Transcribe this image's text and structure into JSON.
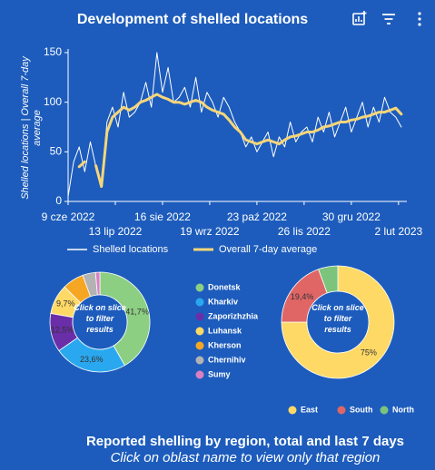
{
  "chart_data": [
    {
      "type": "line",
      "title": "Development of shelled locations",
      "y_label": "Shelled locations | Overall 7-day average",
      "x": [
        "2022-06-09",
        "2022-06-13",
        "2022-06-17",
        "2022-06-21",
        "2022-06-25",
        "2022-06-29",
        "2022-07-03",
        "2022-07-07",
        "2022-07-11",
        "2022-07-15",
        "2022-07-19",
        "2022-07-23",
        "2022-07-27",
        "2022-07-31",
        "2022-08-04",
        "2022-08-08",
        "2022-08-12",
        "2022-08-16",
        "2022-08-20",
        "2022-08-24",
        "2022-08-28",
        "2022-09-01",
        "2022-09-05",
        "2022-09-09",
        "2022-09-13",
        "2022-09-17",
        "2022-09-21",
        "2022-09-25",
        "2022-09-29",
        "2022-10-03",
        "2022-10-07",
        "2022-10-11",
        "2022-10-15",
        "2022-10-19",
        "2022-10-23",
        "2022-10-27",
        "2022-10-31",
        "2022-11-04",
        "2022-11-08",
        "2022-11-12",
        "2022-11-16",
        "2022-11-20",
        "2022-11-24",
        "2022-11-28",
        "2022-12-02",
        "2022-12-06",
        "2022-12-10",
        "2022-12-14",
        "2022-12-18",
        "2022-12-22",
        "2022-12-26",
        "2022-12-30",
        "2023-01-03",
        "2023-01-07",
        "2023-01-11",
        "2023-01-15",
        "2023-01-19",
        "2023-01-23",
        "2023-01-27",
        "2023-01-31",
        "2023-02-04"
      ],
      "series": [
        {
          "name": "Shelled locations",
          "color": "#ffffff",
          "values": [
            5,
            40,
            55,
            30,
            60,
            35,
            15,
            80,
            95,
            75,
            110,
            85,
            90,
            100,
            120,
            95,
            150,
            110,
            135,
            100,
            105,
            115,
            95,
            125,
            90,
            110,
            100,
            85,
            105,
            95,
            80,
            70,
            55,
            65,
            50,
            60,
            70,
            45,
            65,
            55,
            80,
            60,
            70,
            75,
            60,
            85,
            70,
            90,
            65,
            80,
            95,
            70,
            85,
            100,
            75,
            95,
            80,
            105,
            90,
            85,
            75
          ]
        },
        {
          "name": "Overall 7-day average",
          "color": "#f6d67a",
          "values": [
            null,
            null,
            35,
            40,
            null,
            36,
            15,
            70,
            85,
            90,
            95,
            92,
            95,
            100,
            102,
            105,
            108,
            105,
            103,
            100,
            100,
            98,
            100,
            102,
            100,
            95,
            92,
            90,
            88,
            82,
            75,
            70,
            62,
            60,
            58,
            60,
            62,
            60,
            58,
            62,
            65,
            66,
            68,
            70,
            70,
            72,
            75,
            76,
            78,
            80,
            80,
            82,
            83,
            85,
            86,
            88,
            90,
            90,
            92,
            94,
            88
          ]
        }
      ],
      "xlim": [
        "2022-06-09",
        "2023-02-08"
      ],
      "xticks": [
        {
          "value": "2022-06-09",
          "label": "9 cze 2022"
        },
        {
          "value": "2022-07-13",
          "label": "13 lip 2022"
        },
        {
          "value": "2022-08-16",
          "label": "16 sie 2022"
        },
        {
          "value": "2022-09-19",
          "label": "19 wrz 2022"
        },
        {
          "value": "2022-10-23",
          "label": "23 paź 2022"
        },
        {
          "value": "2022-11-26",
          "label": "26 lis 2022"
        },
        {
          "value": "2022-12-30",
          "label": "30 gru 2022"
        },
        {
          "value": "2023-02-02",
          "label": "2 lut 2023"
        }
      ],
      "ylim": [
        0,
        150
      ],
      "yticks": [
        0,
        50,
        100,
        150
      ],
      "grid": false,
      "legend": "bottom"
    },
    {
      "type": "donut",
      "center_text": "Click on slice to filter results",
      "categories": [
        "Donetsk",
        "Kharkiv",
        "Zaporizhzhia",
        "Luhansk",
        "Kherson",
        "Chernihiv",
        "Sumy"
      ],
      "values": [
        41.7,
        23.6,
        12.5,
        9.7,
        6.9,
        4.2,
        1.4
      ],
      "value_labels": [
        "41,7%",
        "23,6%",
        "12,5%",
        "9,7%",
        null,
        null,
        null
      ],
      "colors": [
        "#8ccf83",
        "#2aa8ef",
        "#6a2ea8",
        "#ffd966",
        "#f5a623",
        "#b3b3b3",
        "#d97fc2"
      ],
      "legend": "right"
    },
    {
      "type": "donut",
      "center_text": "Click on slice to filter results",
      "categories": [
        "East",
        "South",
        "North"
      ],
      "values": [
        75,
        19.4,
        5.6
      ],
      "value_labels": [
        "75%",
        "19,4%",
        null
      ],
      "colors": [
        "#ffd966",
        "#e06666",
        "#7cc47c"
      ],
      "legend": "bottom"
    }
  ],
  "footer": {
    "title": "Reported shelling by region, total and last 7 days",
    "subtitle": "Click on oblast name to view only that region"
  }
}
